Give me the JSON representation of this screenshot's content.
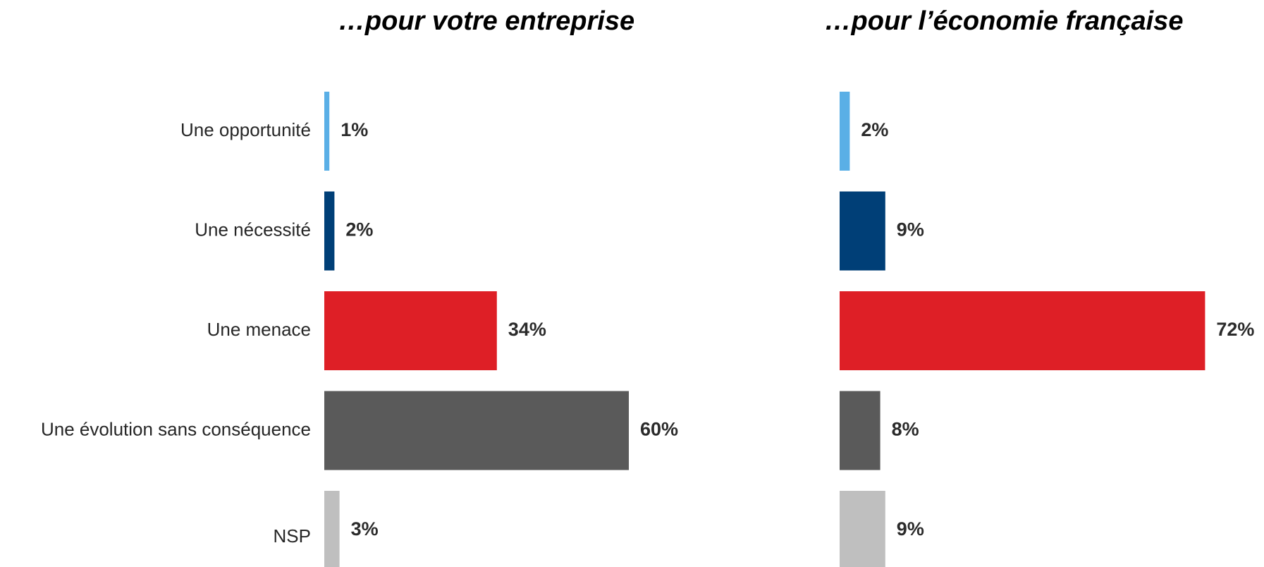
{
  "chart_data": [
    {
      "type": "bar",
      "orientation": "horizontal",
      "title": "…pour votre entreprise",
      "categories": [
        "Une opportunité",
        "Une nécessité",
        "Une menace",
        "Une évolution sans conséquence",
        "NSP"
      ],
      "values": [
        1,
        2,
        34,
        60,
        3
      ],
      "value_labels": [
        "1%",
        "2%",
        "34%",
        "60%",
        "3%"
      ],
      "colors": [
        "#5aafe6",
        "#003f77",
        "#de1f26",
        "#5a5a5a",
        "#bfbfbf"
      ]
    },
    {
      "type": "bar",
      "orientation": "horizontal",
      "title": "…pour l’économie française",
      "values": [
        2,
        9,
        72,
        8,
        9
      ],
      "value_labels": [
        "2%",
        "9%",
        "72%",
        "8%",
        "9%"
      ],
      "colors": [
        "#5aafe6",
        "#003f77",
        "#de1f26",
        "#5a5a5a",
        "#bfbfbf"
      ]
    }
  ]
}
